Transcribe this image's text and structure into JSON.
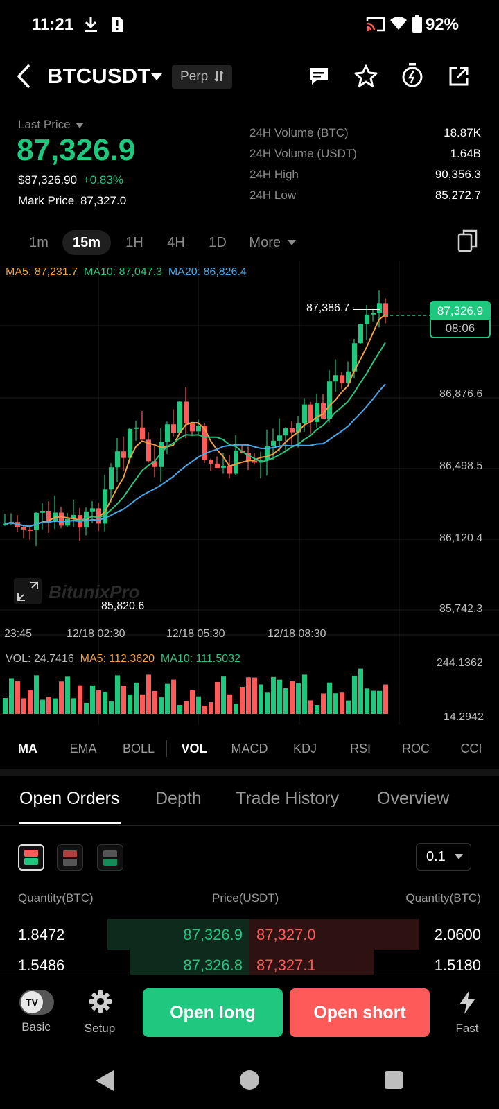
{
  "status_bar": {
    "time": "11:21",
    "battery": "92%"
  },
  "header": {
    "pair": "BTCUSDT",
    "tag": "Perp"
  },
  "ticker": {
    "last_price_label": "Last Price",
    "last_price": "87,326.9",
    "usd_price": "$87,326.90",
    "change": "+0.83%",
    "mark_label": "Mark Price",
    "mark_value": "87,327.0",
    "stats": [
      {
        "label": "24H Volume (BTC)",
        "value": "18.87K"
      },
      {
        "label": "24H Volume (USDT)",
        "value": "1.64B"
      },
      {
        "label": "24H High",
        "value": "90,356.3"
      },
      {
        "label": "24H Low",
        "value": "85,272.7"
      }
    ]
  },
  "intervals": [
    "1m",
    "15m",
    "1H",
    "4H",
    "1D",
    "More"
  ],
  "chart": {
    "ma5": "MA5: 87,231.7",
    "ma10": "MA10: 87,047.3",
    "ma20": "MA20: 86,826.4",
    "high_marker": "87,386.7",
    "low_marker": "85,820.6",
    "price_tag": "87,326.9",
    "countdown": "08:06",
    "y_labels": [
      "86,876.6",
      "86,498.5",
      "86,120.4",
      "85,742.3"
    ],
    "x_labels": [
      "23:45",
      "12/18 02:30",
      "12/18 05:30",
      "12/18 08:30"
    ],
    "watermark": "BitunixPro",
    "vol_legend": {
      "vol": "VOL: 24.7416",
      "ma5": "MA5: 112.3620",
      "ma10": "MA10: 111.5032"
    },
    "vol_y_labels": [
      "244.1362",
      "14.2942"
    ],
    "colors": {
      "up": "#1fc77f",
      "down": "#ff5a5a",
      "ma5": "#f0a040",
      "ma10": "#2ec27e",
      "ma20": "#4aa8e8"
    }
  },
  "indicator_tabs": [
    "MA",
    "EMA",
    "BOLL",
    "VOL",
    "MACD",
    "KDJ",
    "RSI",
    "ROC",
    "CCI"
  ],
  "orderbook": {
    "tabs": [
      "Open Orders",
      "Depth",
      "Trade History",
      "Overview"
    ],
    "precision": "0.1",
    "headers": {
      "left": "Quantity(BTC)",
      "mid": "Price(USDT)",
      "right": "Quantity(BTC)"
    },
    "rows": [
      {
        "bid_qty": "1.8472",
        "bid_price": "87,326.9",
        "ask_price": "87,327.0",
        "ask_qty": "2.0600",
        "bid_depth": 0.57,
        "ask_depth": 0.68
      },
      {
        "bid_qty": "1.5486",
        "bid_price": "87,326.8",
        "ask_price": "87,327.1",
        "ask_qty": "1.5180",
        "bid_depth": 0.48,
        "ask_depth": 0.5
      }
    ]
  },
  "bottom_bar": {
    "basic": "Basic",
    "setup": "Setup",
    "open_long": "Open long",
    "open_short": "Open short",
    "fast": "Fast"
  }
}
